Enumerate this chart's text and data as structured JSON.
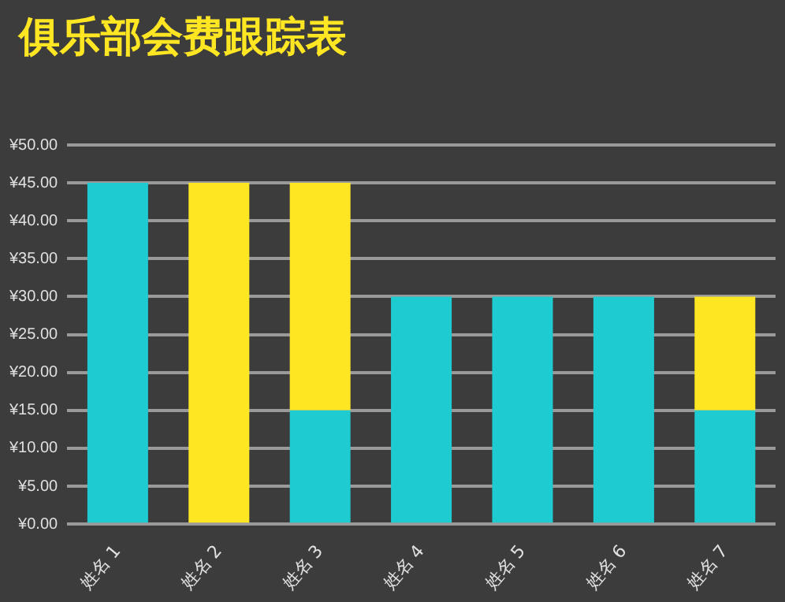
{
  "chart_data": {
    "type": "bar",
    "title": "俱乐部会费跟踪表",
    "stacked": true,
    "categories": [
      "姓名 1",
      "姓名 2",
      "姓名 3",
      "姓名 4",
      "姓名 5",
      "姓名 6",
      "姓名 7"
    ],
    "series": [
      {
        "color": "#1ecbd0",
        "values": [
          45,
          0,
          15,
          30,
          30,
          30,
          15
        ]
      },
      {
        "color": "#ffe622",
        "values": [
          0,
          45,
          30,
          0,
          0,
          0,
          15
        ]
      }
    ],
    "ylim": [
      0,
      50
    ],
    "yticks": [
      {
        "value": 0,
        "label": "¥0.00"
      },
      {
        "value": 5,
        "label": "¥5.00"
      },
      {
        "value": 10,
        "label": "¥10.00"
      },
      {
        "value": 15,
        "label": "¥15.00"
      },
      {
        "value": 20,
        "label": "¥20.00"
      },
      {
        "value": 25,
        "label": "¥25.00"
      },
      {
        "value": 30,
        "label": "¥30.00"
      },
      {
        "value": 35,
        "label": "¥35.00"
      },
      {
        "value": 40,
        "label": "¥40.00"
      },
      {
        "value": 45,
        "label": "¥45.00"
      },
      {
        "value": 50,
        "label": "¥50.00"
      }
    ],
    "grid": "y",
    "legend": false
  }
}
